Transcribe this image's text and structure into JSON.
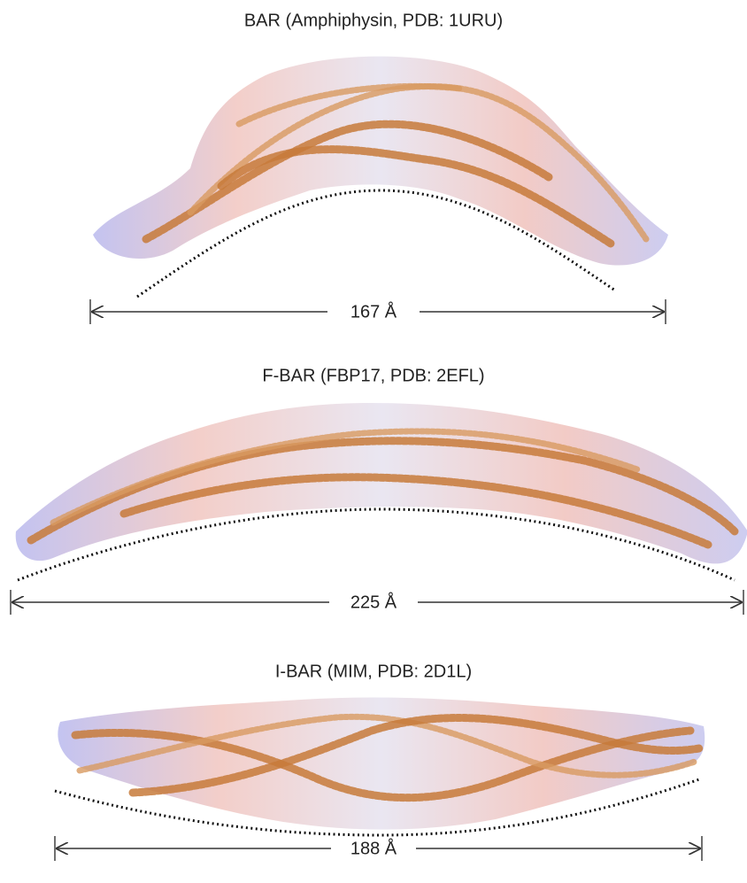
{
  "panels": [
    {
      "title": "BAR (Amphiphysin, PDB: 1URU)",
      "length": "167 Å"
    },
    {
      "title": "F-BAR (FBP17, PDB: 2EFL)",
      "length": "225 Å"
    },
    {
      "title": "I-BAR (MIM, PDB: 2D1L)",
      "length": "188 Å"
    }
  ]
}
